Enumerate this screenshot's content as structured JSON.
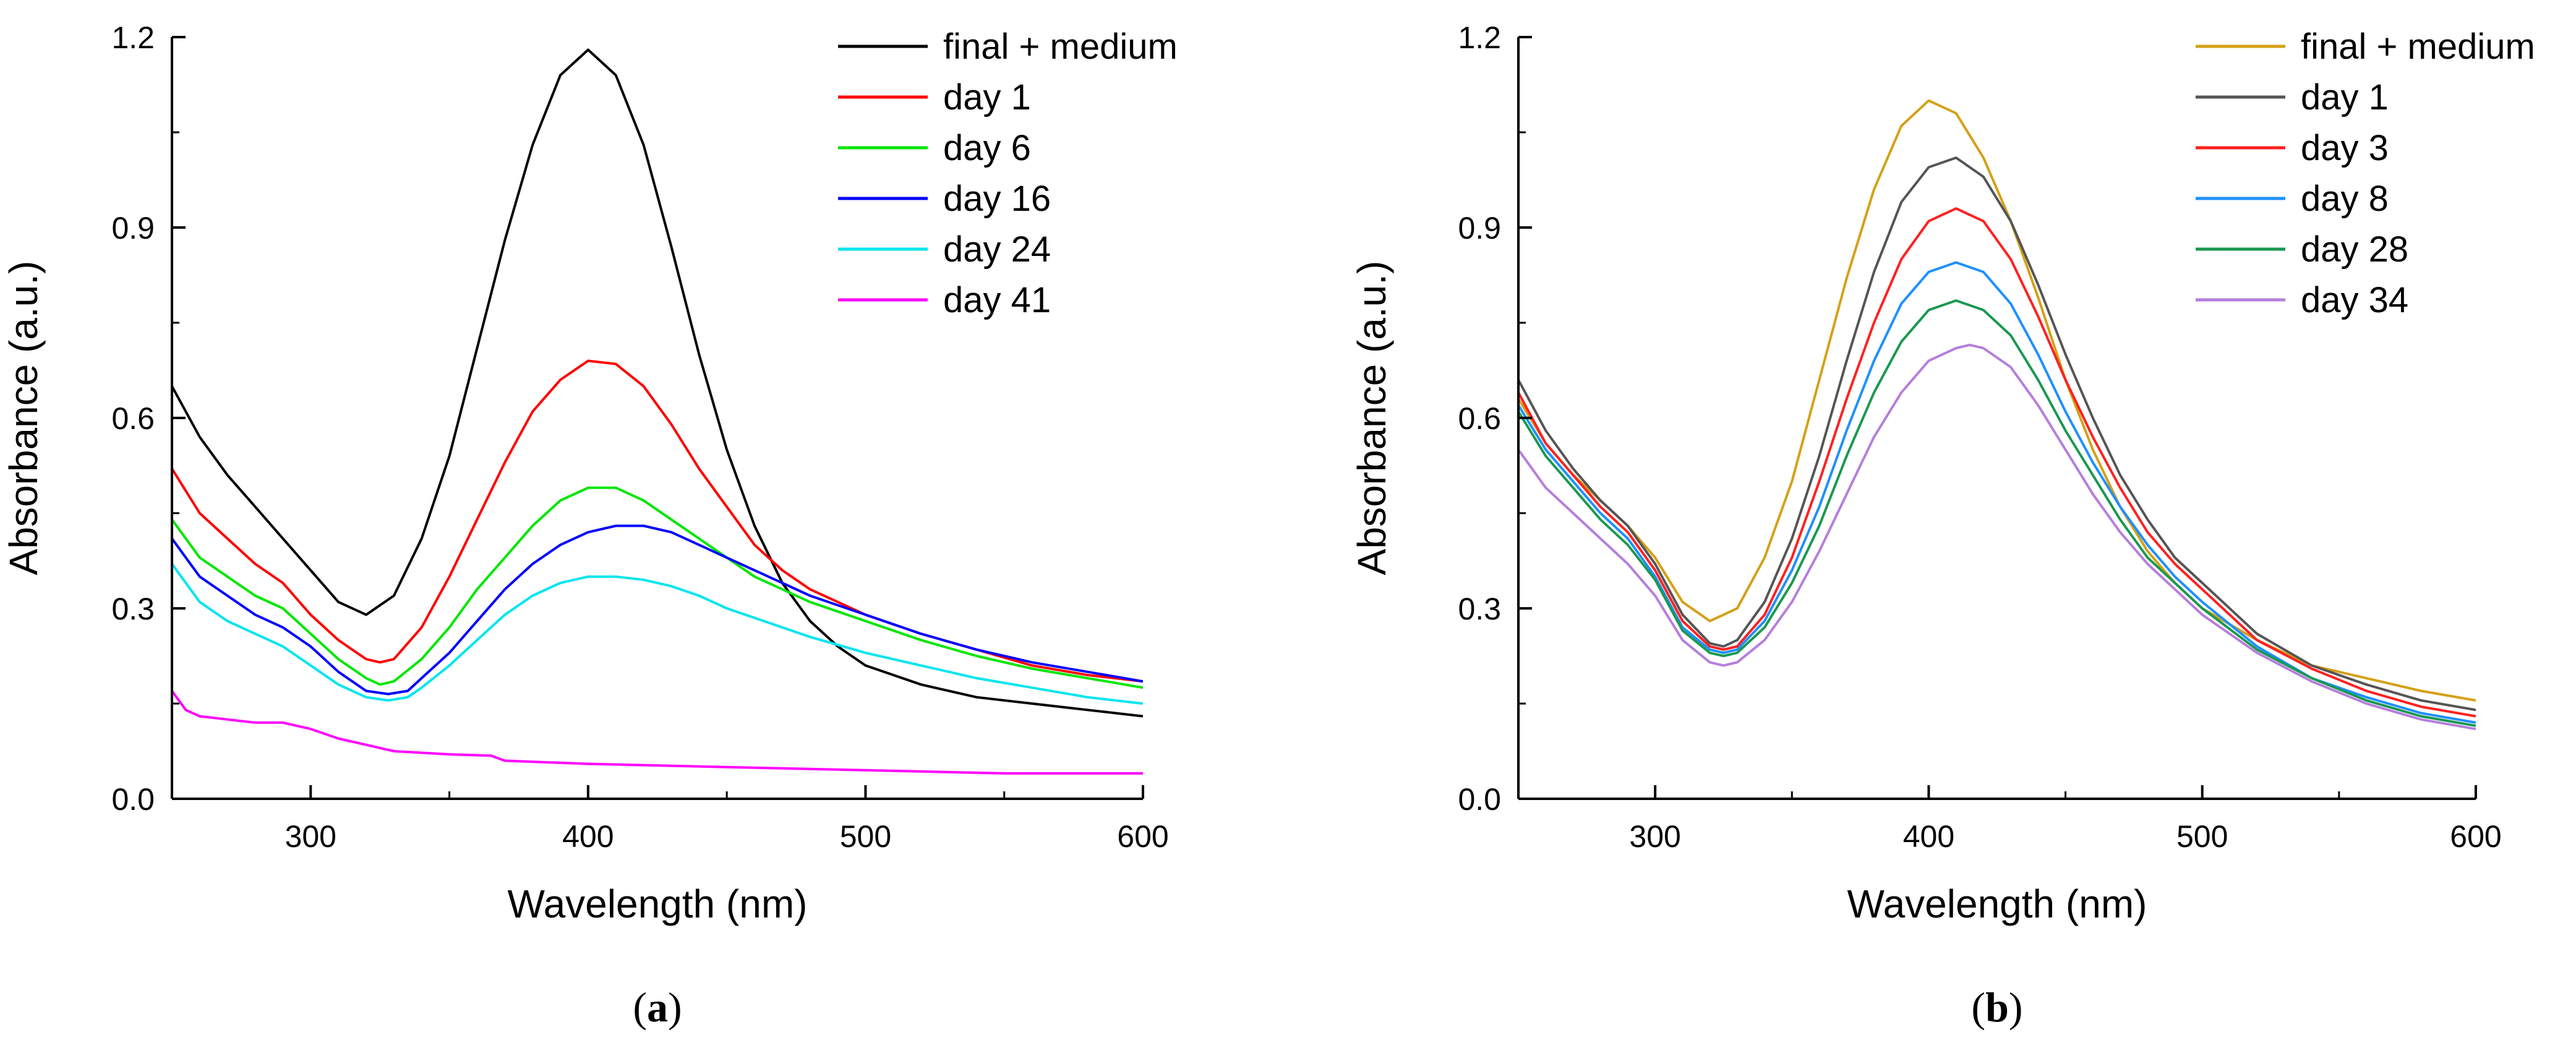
{
  "chart_data": [
    {
      "type": "line",
      "panel_label": "a",
      "title": "",
      "xlabel": "Wavelength (nm)",
      "ylabel": "Absorbance (a.u.)",
      "xlim": [
        250,
        600
      ],
      "ylim": [
        0,
        1.2
      ],
      "xticks": [
        300,
        400,
        500,
        600
      ],
      "xtick_labels": [
        "300",
        "400",
        "500",
        "600"
      ],
      "yticks": [
        0,
        0.3,
        0.6,
        0.9,
        1.2
      ],
      "ytick_labels": [
        "0.0",
        "0.3",
        "0.6",
        "0.9",
        "1.2"
      ],
      "grid": false,
      "legend_position": "top-right",
      "series": [
        {
          "name": "final + medium",
          "color": "#000000",
          "x": [
            250,
            260,
            270,
            280,
            290,
            300,
            310,
            320,
            330,
            340,
            350,
            360,
            370,
            380,
            390,
            400,
            410,
            420,
            430,
            440,
            450,
            460,
            470,
            480,
            490,
            500,
            520,
            540,
            560,
            580,
            600
          ],
          "y": [
            0.65,
            0.57,
            0.51,
            0.46,
            0.41,
            0.36,
            0.31,
            0.29,
            0.32,
            0.41,
            0.54,
            0.71,
            0.88,
            1.03,
            1.14,
            1.18,
            1.14,
            1.03,
            0.87,
            0.7,
            0.55,
            0.43,
            0.34,
            0.28,
            0.24,
            0.21,
            0.18,
            0.16,
            0.15,
            0.14,
            0.13
          ]
        },
        {
          "name": "day 1",
          "color": "#ff0000",
          "x": [
            250,
            260,
            270,
            280,
            290,
            300,
            310,
            320,
            325,
            330,
            340,
            350,
            360,
            370,
            380,
            390,
            400,
            410,
            420,
            430,
            440,
            450,
            460,
            470,
            480,
            490,
            500,
            520,
            540,
            560,
            580,
            600
          ],
          "y": [
            0.52,
            0.45,
            0.41,
            0.37,
            0.34,
            0.29,
            0.25,
            0.22,
            0.215,
            0.22,
            0.27,
            0.35,
            0.44,
            0.53,
            0.61,
            0.66,
            0.69,
            0.685,
            0.65,
            0.59,
            0.52,
            0.46,
            0.4,
            0.36,
            0.33,
            0.31,
            0.29,
            0.26,
            0.235,
            0.21,
            0.195,
            0.185
          ]
        },
        {
          "name": "day 6",
          "color": "#00e600",
          "x": [
            250,
            260,
            270,
            280,
            290,
            300,
            310,
            320,
            325,
            330,
            340,
            350,
            360,
            370,
            380,
            390,
            400,
            410,
            420,
            430,
            440,
            450,
            460,
            470,
            480,
            500,
            520,
            540,
            560,
            580,
            600
          ],
          "y": [
            0.44,
            0.38,
            0.35,
            0.32,
            0.3,
            0.26,
            0.22,
            0.19,
            0.18,
            0.185,
            0.22,
            0.27,
            0.33,
            0.38,
            0.43,
            0.47,
            0.49,
            0.49,
            0.47,
            0.44,
            0.41,
            0.38,
            0.35,
            0.33,
            0.31,
            0.28,
            0.25,
            0.225,
            0.205,
            0.19,
            0.175
          ]
        },
        {
          "name": "day 16",
          "color": "#0000ff",
          "x": [
            250,
            260,
            270,
            280,
            290,
            300,
            310,
            320,
            328,
            335,
            340,
            350,
            360,
            370,
            380,
            390,
            400,
            410,
            415,
            420,
            430,
            440,
            450,
            460,
            470,
            480,
            500,
            520,
            540,
            560,
            580,
            600
          ],
          "y": [
            0.41,
            0.35,
            0.32,
            0.29,
            0.27,
            0.24,
            0.2,
            0.17,
            0.165,
            0.17,
            0.19,
            0.23,
            0.28,
            0.33,
            0.37,
            0.4,
            0.42,
            0.43,
            0.43,
            0.43,
            0.42,
            0.4,
            0.38,
            0.36,
            0.34,
            0.32,
            0.29,
            0.26,
            0.235,
            0.215,
            0.2,
            0.185
          ]
        },
        {
          "name": "day 24",
          "color": "#00e5ee",
          "x": [
            250,
            260,
            270,
            280,
            290,
            300,
            310,
            320,
            328,
            335,
            340,
            350,
            360,
            370,
            380,
            390,
            400,
            410,
            420,
            430,
            440,
            450,
            460,
            470,
            480,
            500,
            520,
            540,
            560,
            580,
            600
          ],
          "y": [
            0.37,
            0.31,
            0.28,
            0.26,
            0.24,
            0.21,
            0.18,
            0.16,
            0.155,
            0.16,
            0.175,
            0.21,
            0.25,
            0.29,
            0.32,
            0.34,
            0.35,
            0.35,
            0.345,
            0.335,
            0.32,
            0.3,
            0.285,
            0.27,
            0.255,
            0.23,
            0.21,
            0.19,
            0.175,
            0.16,
            0.15
          ]
        },
        {
          "name": "day 41",
          "color": "#ff00ff",
          "x": [
            250,
            255,
            260,
            270,
            280,
            290,
            300,
            310,
            320,
            330,
            350,
            365,
            370,
            400,
            450,
            500,
            550,
            600
          ],
          "y": [
            0.17,
            0.14,
            0.13,
            0.125,
            0.12,
            0.12,
            0.11,
            0.095,
            0.085,
            0.075,
            0.07,
            0.068,
            0.06,
            0.055,
            0.05,
            0.045,
            0.04,
            0.04
          ]
        }
      ]
    },
    {
      "type": "line",
      "panel_label": "b",
      "title": "",
      "xlabel": "Wavelength (nm)",
      "ylabel": "Absorbance (a.u.)",
      "xlim": [
        250,
        600
      ],
      "ylim": [
        0,
        1.2
      ],
      "xticks": [
        300,
        400,
        500,
        600
      ],
      "xtick_labels": [
        "300",
        "400",
        "500",
        "600"
      ],
      "yticks": [
        0,
        0.3,
        0.6,
        0.9,
        1.2
      ],
      "ytick_labels": [
        "0.0",
        "0.3",
        "0.6",
        "0.9",
        "1.2"
      ],
      "grid": false,
      "legend_position": "top-right",
      "series": [
        {
          "name": "final + medium",
          "color": "#d4a017",
          "x": [
            250,
            260,
            270,
            280,
            290,
            300,
            310,
            320,
            330,
            340,
            350,
            360,
            370,
            380,
            390,
            400,
            410,
            420,
            430,
            440,
            450,
            460,
            470,
            480,
            490,
            500,
            520,
            540,
            560,
            580,
            600
          ],
          "y": [
            0.63,
            0.56,
            0.51,
            0.47,
            0.43,
            0.38,
            0.31,
            0.28,
            0.3,
            0.38,
            0.5,
            0.66,
            0.82,
            0.96,
            1.06,
            1.1,
            1.08,
            1.01,
            0.91,
            0.79,
            0.66,
            0.55,
            0.46,
            0.39,
            0.34,
            0.3,
            0.25,
            0.21,
            0.19,
            0.17,
            0.155
          ]
        },
        {
          "name": "day 1",
          "color": "#555555",
          "x": [
            250,
            260,
            270,
            280,
            290,
            300,
            310,
            320,
            325,
            330,
            340,
            350,
            360,
            370,
            380,
            390,
            400,
            410,
            420,
            430,
            440,
            450,
            460,
            470,
            480,
            490,
            500,
            520,
            540,
            560,
            580,
            600
          ],
          "y": [
            0.66,
            0.58,
            0.52,
            0.47,
            0.43,
            0.37,
            0.29,
            0.245,
            0.24,
            0.25,
            0.31,
            0.41,
            0.54,
            0.69,
            0.83,
            0.94,
            0.995,
            1.01,
            0.98,
            0.91,
            0.81,
            0.7,
            0.6,
            0.51,
            0.44,
            0.38,
            0.34,
            0.26,
            0.21,
            0.18,
            0.155,
            0.14
          ]
        },
        {
          "name": "day 3",
          "color": "#ff2020",
          "x": [
            250,
            260,
            270,
            280,
            290,
            300,
            310,
            320,
            325,
            330,
            340,
            350,
            360,
            370,
            380,
            390,
            400,
            410,
            420,
            430,
            440,
            450,
            460,
            470,
            480,
            490,
            500,
            520,
            540,
            560,
            580,
            600
          ],
          "y": [
            0.64,
            0.56,
            0.51,
            0.46,
            0.42,
            0.36,
            0.28,
            0.24,
            0.235,
            0.24,
            0.29,
            0.38,
            0.5,
            0.63,
            0.75,
            0.85,
            0.91,
            0.93,
            0.91,
            0.85,
            0.76,
            0.66,
            0.57,
            0.49,
            0.42,
            0.37,
            0.33,
            0.25,
            0.205,
            0.17,
            0.145,
            0.13
          ]
        },
        {
          "name": "day 8",
          "color": "#1e90ff",
          "x": [
            250,
            260,
            270,
            280,
            290,
            300,
            310,
            320,
            325,
            330,
            340,
            350,
            360,
            370,
            380,
            390,
            400,
            410,
            420,
            430,
            440,
            450,
            460,
            470,
            480,
            490,
            500,
            520,
            540,
            560,
            580,
            600
          ],
          "y": [
            0.62,
            0.55,
            0.5,
            0.45,
            0.41,
            0.35,
            0.27,
            0.235,
            0.23,
            0.235,
            0.28,
            0.36,
            0.46,
            0.58,
            0.69,
            0.78,
            0.83,
            0.845,
            0.83,
            0.78,
            0.7,
            0.61,
            0.53,
            0.46,
            0.4,
            0.35,
            0.31,
            0.24,
            0.19,
            0.16,
            0.135,
            0.12
          ]
        },
        {
          "name": "day 28",
          "color": "#1a9850",
          "x": [
            250,
            260,
            270,
            280,
            290,
            300,
            310,
            320,
            325,
            330,
            340,
            350,
            360,
            370,
            380,
            390,
            400,
            410,
            420,
            430,
            440,
            450,
            460,
            470,
            480,
            490,
            500,
            520,
            540,
            560,
            580,
            600
          ],
          "y": [
            0.61,
            0.54,
            0.49,
            0.44,
            0.4,
            0.345,
            0.265,
            0.23,
            0.225,
            0.23,
            0.27,
            0.34,
            0.43,
            0.54,
            0.64,
            0.72,
            0.77,
            0.785,
            0.77,
            0.73,
            0.66,
            0.58,
            0.51,
            0.44,
            0.38,
            0.34,
            0.3,
            0.235,
            0.19,
            0.155,
            0.13,
            0.115
          ]
        },
        {
          "name": "day 34",
          "color": "#b57edc",
          "x": [
            250,
            260,
            270,
            280,
            290,
            300,
            310,
            320,
            325,
            330,
            340,
            350,
            360,
            370,
            380,
            390,
            400,
            410,
            415,
            420,
            430,
            440,
            450,
            460,
            470,
            480,
            490,
            500,
            520,
            540,
            560,
            580,
            600
          ],
          "y": [
            0.55,
            0.49,
            0.45,
            0.41,
            0.37,
            0.32,
            0.25,
            0.215,
            0.21,
            0.215,
            0.25,
            0.31,
            0.39,
            0.48,
            0.57,
            0.64,
            0.69,
            0.71,
            0.715,
            0.71,
            0.68,
            0.62,
            0.55,
            0.48,
            0.42,
            0.37,
            0.33,
            0.29,
            0.23,
            0.185,
            0.15,
            0.125,
            0.11
          ]
        }
      ]
    }
  ]
}
